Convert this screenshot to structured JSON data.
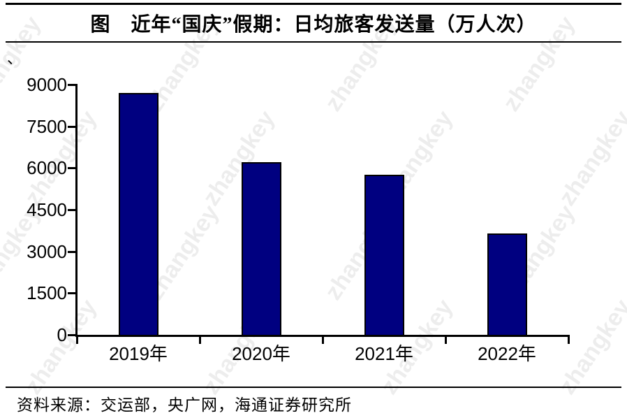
{
  "page": {
    "title": "图　近年“国庆”假期：日均旅客发送量（万人次）",
    "stray_mark": "、",
    "source": "资料来源：交运部，央广网，海通证券研究所",
    "watermark": "zhangkey",
    "accent_color": "#000080",
    "line_color": "#000000"
  },
  "chart_data": {
    "type": "bar",
    "title": "图 近年“国庆”假期：日均旅客发送量（万人次）",
    "categories": [
      "2019年",
      "2020年",
      "2021年",
      "2022年"
    ],
    "values": [
      8700,
      6200,
      5750,
      3650
    ],
    "xlabel": "",
    "ylabel": "",
    "ylim": [
      0,
      9000
    ],
    "yticks": [
      0,
      1500,
      3000,
      4500,
      6000,
      7500,
      9000
    ],
    "grid": false,
    "legend": false,
    "bar_color": "#000080",
    "bar_border_color": "#000000",
    "source_note": "资料来源：交运部，央广网，海通证券研究所"
  }
}
